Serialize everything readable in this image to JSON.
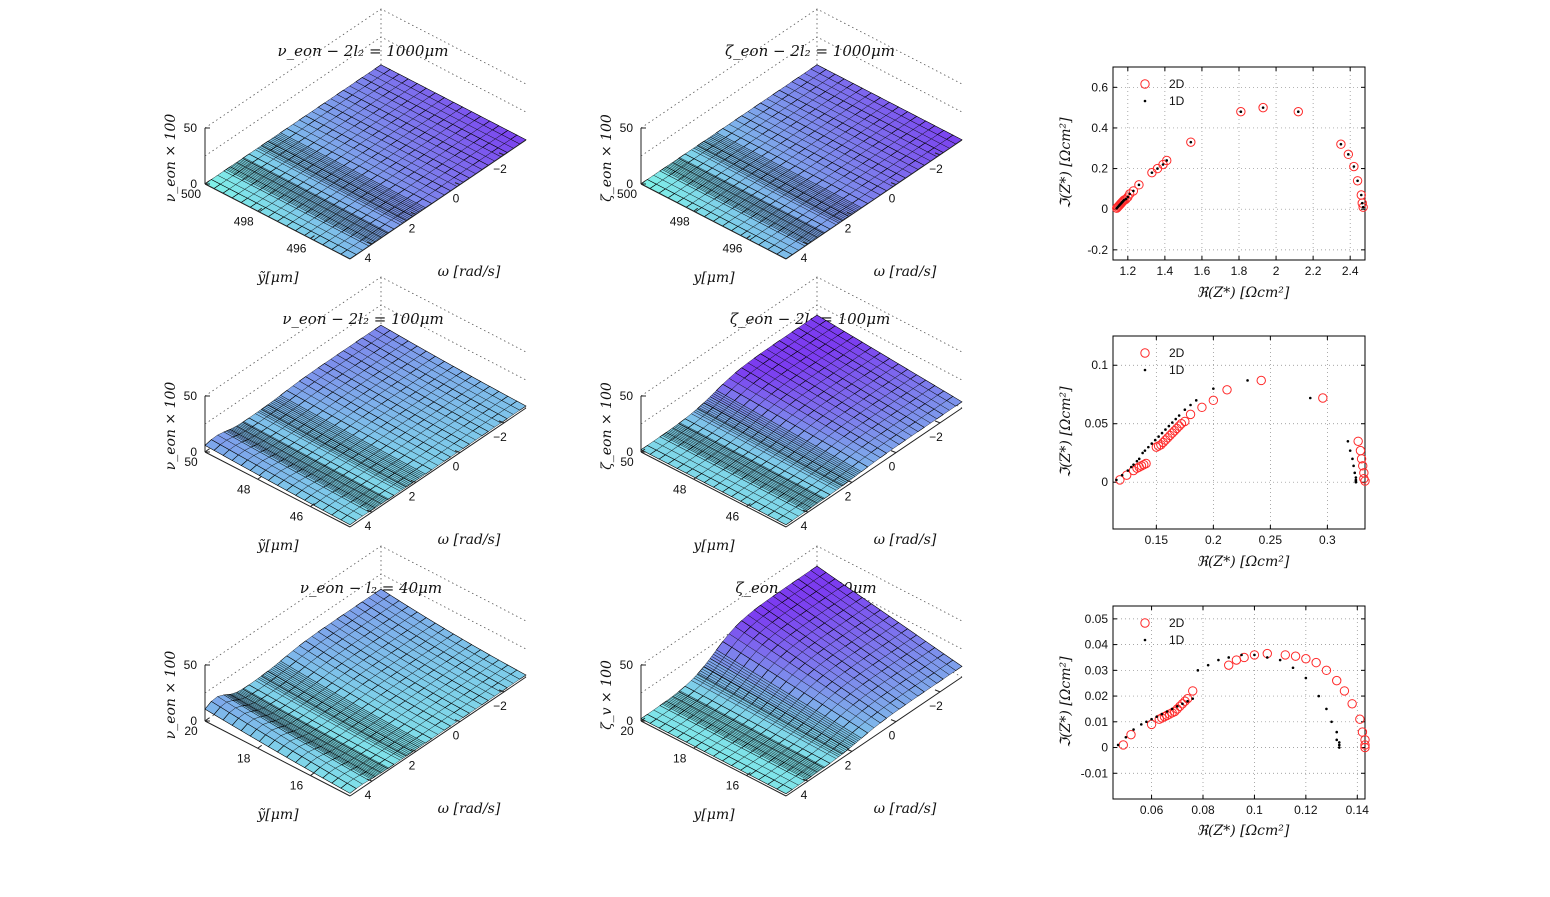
{
  "figure": {
    "surface_colors": {
      "low": "#7ff0e8",
      "high": "#7c3cf0",
      "edge": "#000000"
    }
  },
  "chart_data": [
    {
      "id": "surf-1-1",
      "type": "surface3d",
      "title": "ν_eon −  2l₂ = 1000μm",
      "xlabel": "ỹ[μm]",
      "ylabel": "ω    [rad/s]",
      "zlabel": "ν_eon × 100",
      "xticks": [
        500,
        498,
        496
      ],
      "yticks": [
        4,
        2,
        0,
        -2
      ],
      "zticks": [
        0,
        50
      ],
      "xlim": [
        494.5,
        500
      ],
      "ylim": [
        -3,
        5
      ],
      "zlim": [
        0,
        50
      ],
      "profile": "flat",
      "peak": 0
    },
    {
      "id": "surf-1-2",
      "type": "surface3d",
      "title": "ζ_eon −  2l₂ = 1000μm",
      "xlabel": "y[μm]",
      "ylabel": "ω    [rad/s]",
      "zlabel": "ζ_eon × 100",
      "xticks": [
        500,
        498,
        496
      ],
      "yticks": [
        4,
        2,
        0,
        -2
      ],
      "zticks": [
        0,
        50
      ],
      "xlim": [
        494.5,
        500
      ],
      "ylim": [
        -3,
        5
      ],
      "zlim": [
        0,
        50
      ],
      "profile": "flat",
      "peak": 0
    },
    {
      "id": "nyq-1",
      "type": "scatter",
      "xlabel": "ℜ(Z*) [Ωcm²]",
      "ylabel": "ℑ(Z*) [Ωcm²]",
      "xlim": [
        1.12,
        2.48
      ],
      "ylim": [
        -0.25,
        0.7
      ],
      "xticks": [
        1.2,
        1.4,
        1.6,
        1.8,
        2,
        2.2,
        2.4
      ],
      "xtick_labels": [
        "1.2",
        "1.4",
        "1.6",
        "1.8",
        "2",
        "2.2",
        "2.4"
      ],
      "yticks": [
        -0.2,
        0,
        0.2,
        0.4,
        0.6
      ],
      "ytick_labels": [
        "-0.2",
        "0",
        "0.2",
        "0.4",
        "0.6"
      ],
      "grid": true,
      "legend": "top-left",
      "series": [
        {
          "name": "2D",
          "marker": "circle",
          "color": "#ff2a2a",
          "x": [
            1.14,
            1.145,
            1.15,
            1.155,
            1.16,
            1.165,
            1.17,
            1.175,
            1.18,
            1.19,
            1.2,
            1.21,
            1.23,
            1.26,
            1.33,
            1.36,
            1.39,
            1.41,
            1.54,
            1.81,
            1.93,
            2.12,
            2.35,
            2.39,
            2.42,
            2.44,
            2.46,
            2.465,
            2.47
          ],
          "y": [
            0.005,
            0.01,
            0.015,
            0.02,
            0.025,
            0.03,
            0.035,
            0.04,
            0.045,
            0.05,
            0.06,
            0.075,
            0.09,
            0.12,
            0.18,
            0.2,
            0.22,
            0.24,
            0.33,
            0.48,
            0.5,
            0.48,
            0.32,
            0.27,
            0.21,
            0.14,
            0.07,
            0.03,
            0.01
          ]
        },
        {
          "name": "1D",
          "marker": "dot",
          "color": "#000000",
          "x": [
            1.14,
            1.145,
            1.15,
            1.155,
            1.16,
            1.165,
            1.17,
            1.175,
            1.18,
            1.19,
            1.2,
            1.21,
            1.23,
            1.26,
            1.33,
            1.36,
            1.39,
            1.41,
            1.54,
            1.81,
            1.93,
            2.12,
            2.35,
            2.39,
            2.42,
            2.44,
            2.46,
            2.465,
            2.47
          ],
          "y": [
            0.005,
            0.01,
            0.015,
            0.02,
            0.025,
            0.03,
            0.035,
            0.04,
            0.045,
            0.05,
            0.06,
            0.075,
            0.09,
            0.12,
            0.18,
            0.2,
            0.22,
            0.24,
            0.33,
            0.48,
            0.5,
            0.48,
            0.32,
            0.27,
            0.21,
            0.14,
            0.07,
            0.03,
            0.01
          ]
        }
      ]
    },
    {
      "id": "surf-2-1",
      "type": "surface3d",
      "title": "ν_eon −  2l₂ = 100μm",
      "xlabel": "ỹ[μm]",
      "ylabel": "ω    [rad/s]",
      "zlabel": "ν_eon × 100",
      "xticks": [
        50,
        48,
        46
      ],
      "yticks": [
        4,
        2,
        0,
        -2
      ],
      "zticks": [
        0,
        50
      ],
      "xlim": [
        44.5,
        50
      ],
      "ylim": [
        -3,
        5
      ],
      "zlim": [
        0,
        50
      ],
      "profile": "edge-peak",
      "peak": 14
    },
    {
      "id": "surf-2-2",
      "type": "surface3d",
      "title": "ζ_eon −  2l₂ = 100μm",
      "xlabel": "y[μm]",
      "ylabel": "ω    [rad/s]",
      "zlabel": "ζ_eon × 100",
      "xticks": [
        50,
        48,
        46
      ],
      "yticks": [
        4,
        2,
        0,
        -2
      ],
      "zticks": [
        0,
        50
      ],
      "xlim": [
        44.5,
        50
      ],
      "ylim": [
        -3,
        5
      ],
      "zlim": [
        0,
        50
      ],
      "profile": "step",
      "peak": 14
    },
    {
      "id": "nyq-2",
      "type": "scatter",
      "xlabel": "ℜ(Z*) [Ωcm²]",
      "ylabel": "ℑ(Z*) [Ωcm²]",
      "xlim": [
        0.112,
        0.333
      ],
      "ylim": [
        -0.04,
        0.125
      ],
      "xticks": [
        0.15,
        0.2,
        0.25,
        0.3
      ],
      "xtick_labels": [
        "0.15",
        "0.2",
        "0.25",
        "0.3"
      ],
      "yticks": [
        0,
        0.05,
        0.1
      ],
      "ytick_labels": [
        "0",
        "0.05",
        "0.1"
      ],
      "grid": true,
      "legend": "top-left",
      "series": [
        {
          "name": "2D",
          "marker": "circle",
          "color": "#ff2a2a",
          "x": [
            0.118,
            0.124,
            0.13,
            0.133,
            0.135,
            0.137,
            0.139,
            0.141,
            0.15,
            0.152,
            0.154,
            0.156,
            0.158,
            0.16,
            0.162,
            0.164,
            0.166,
            0.168,
            0.17,
            0.172,
            0.175,
            0.18,
            0.19,
            0.2,
            0.212,
            0.242,
            0.296,
            0.327,
            0.329,
            0.33,
            0.331,
            0.332,
            0.332,
            0.333
          ],
          "y": [
            0.002,
            0.006,
            0.01,
            0.012,
            0.013,
            0.014,
            0.015,
            0.016,
            0.03,
            0.031,
            0.032,
            0.034,
            0.036,
            0.038,
            0.04,
            0.042,
            0.044,
            0.046,
            0.048,
            0.05,
            0.052,
            0.058,
            0.064,
            0.07,
            0.079,
            0.087,
            0.072,
            0.035,
            0.027,
            0.02,
            0.014,
            0.008,
            0.003,
            0.001
          ]
        },
        {
          "name": "1D",
          "marker": "dot",
          "color": "#000000",
          "x": [
            0.115,
            0.12,
            0.125,
            0.128,
            0.13,
            0.133,
            0.135,
            0.138,
            0.14,
            0.143,
            0.146,
            0.149,
            0.152,
            0.155,
            0.158,
            0.161,
            0.164,
            0.167,
            0.17,
            0.175,
            0.18,
            0.185,
            0.2,
            0.23,
            0.285,
            0.318,
            0.32,
            0.322,
            0.323,
            0.324,
            0.325,
            0.325,
            0.325,
            0.325
          ],
          "y": [
            0.002,
            0.006,
            0.01,
            0.013,
            0.015,
            0.018,
            0.02,
            0.025,
            0.027,
            0.03,
            0.033,
            0.036,
            0.039,
            0.042,
            0.045,
            0.048,
            0.051,
            0.054,
            0.057,
            0.062,
            0.066,
            0.07,
            0.08,
            0.087,
            0.072,
            0.035,
            0.027,
            0.02,
            0.014,
            0.008,
            0.004,
            0.002,
            0.001,
            0.0
          ]
        }
      ]
    },
    {
      "id": "surf-3-1",
      "type": "surface3d",
      "title": "ν_eon −  l₂ = 40μm",
      "xlabel": "ỹ[μm]",
      "ylabel": "ω    [rad/s]",
      "zlabel": "ν_eon × 100",
      "xticks": [
        20,
        18,
        16
      ],
      "yticks": [
        4,
        2,
        0,
        -2
      ],
      "zticks": [
        0,
        50
      ],
      "xlim": [
        14.5,
        20
      ],
      "ylim": [
        -3,
        5
      ],
      "zlim": [
        0,
        50
      ],
      "profile": "edge-peak",
      "peak": 32
    },
    {
      "id": "surf-3-2",
      "type": "surface3d",
      "title": "ζ_eon −  l₂ = 40μm",
      "xlabel": "y[μm]",
      "ylabel": "ω    [rad/s]",
      "zlabel": "ζ_v × 100",
      "xticks": [
        20,
        18,
        16
      ],
      "yticks": [
        4,
        2,
        0,
        -2
      ],
      "zticks": [
        0,
        50
      ],
      "xlim": [
        14.5,
        20
      ],
      "ylim": [
        -3,
        5
      ],
      "zlim": [
        0,
        50
      ],
      "profile": "step",
      "peak": 30
    },
    {
      "id": "nyq-3",
      "type": "scatter",
      "xlabel": "ℜ(Z*) [Ωcm²]",
      "ylabel": "ℑ(Z*) [Ωcm²]",
      "xlim": [
        0.045,
        0.143
      ],
      "ylim": [
        -0.02,
        0.055
      ],
      "xticks": [
        0.06,
        0.08,
        0.1,
        0.12,
        0.14
      ],
      "xtick_labels": [
        "0.06",
        "0.08",
        "0.1",
        "0.12",
        "0.14"
      ],
      "yticks": [
        -0.01,
        0,
        0.01,
        0.02,
        0.03,
        0.04,
        0.05
      ],
      "ytick_labels": [
        "-0.01",
        "0",
        "0.01",
        "0.02",
        "0.03",
        "0.04",
        "0.05"
      ],
      "grid": true,
      "legend": "top-left",
      "series": [
        {
          "name": "2D",
          "marker": "circle",
          "color": "#ff2a2a",
          "x": [
            0.049,
            0.052,
            0.06,
            0.063,
            0.064,
            0.065,
            0.066,
            0.067,
            0.068,
            0.069,
            0.07,
            0.071,
            0.072,
            0.073,
            0.074,
            0.076,
            0.09,
            0.093,
            0.096,
            0.1,
            0.105,
            0.112,
            0.116,
            0.12,
            0.124,
            0.128,
            0.132,
            0.135,
            0.138,
            0.141,
            0.142,
            0.143,
            0.143,
            0.143
          ],
          "y": [
            0.001,
            0.005,
            0.009,
            0.011,
            0.0115,
            0.012,
            0.0125,
            0.013,
            0.0135,
            0.014,
            0.015,
            0.016,
            0.017,
            0.018,
            0.019,
            0.022,
            0.032,
            0.034,
            0.035,
            0.036,
            0.0365,
            0.036,
            0.0355,
            0.0345,
            0.033,
            0.03,
            0.026,
            0.022,
            0.017,
            0.011,
            0.006,
            0.003,
            0.001,
            0.0
          ]
        },
        {
          "name": "1D",
          "marker": "dot",
          "color": "#000000",
          "x": [
            0.047,
            0.05,
            0.053,
            0.056,
            0.058,
            0.06,
            0.062,
            0.064,
            0.066,
            0.068,
            0.07,
            0.072,
            0.074,
            0.076,
            0.078,
            0.082,
            0.086,
            0.09,
            0.095,
            0.1,
            0.105,
            0.11,
            0.115,
            0.12,
            0.125,
            0.128,
            0.13,
            0.132,
            0.132,
            0.133,
            0.133,
            0.133
          ],
          "y": [
            0.001,
            0.004,
            0.007,
            0.009,
            0.01,
            0.011,
            0.012,
            0.013,
            0.014,
            0.015,
            0.016,
            0.017,
            0.018,
            0.019,
            0.03,
            0.032,
            0.034,
            0.035,
            0.036,
            0.036,
            0.035,
            0.034,
            0.031,
            0.027,
            0.02,
            0.015,
            0.01,
            0.006,
            0.003,
            0.002,
            0.001,
            0.0
          ]
        }
      ]
    }
  ]
}
